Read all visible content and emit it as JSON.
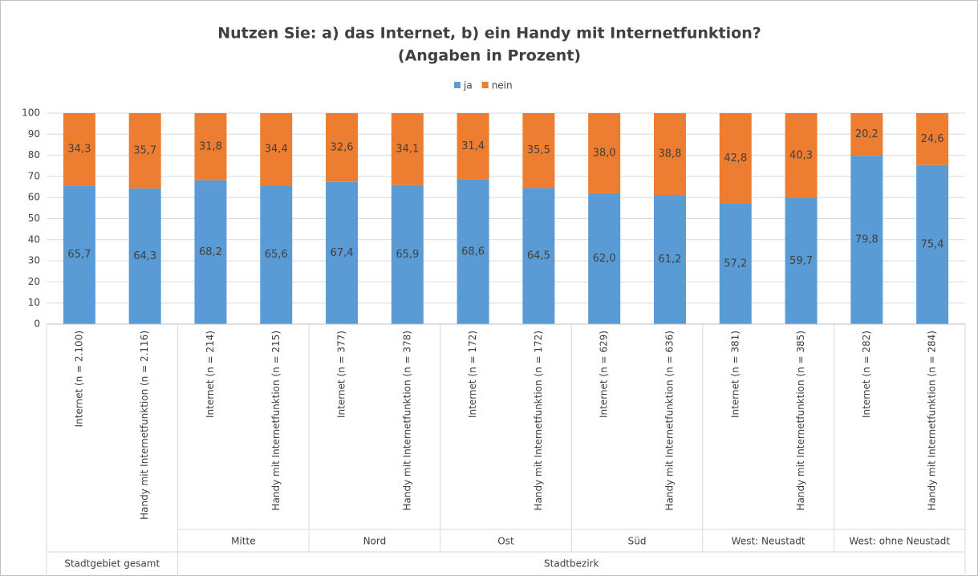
{
  "chart_data": {
    "type": "stacked_bar",
    "title": "Nutzen Sie: a) das Internet, b) ein Handy mit Internetfunktion?",
    "subtitle": "(Angaben in Prozent)",
    "groups": [
      {
        "name": "Stadtgebiet gesamt",
        "subgroups": [
          {
            "categories": [
              "Internet (n = 2.100)",
              "Handy mit Internetfunktion (n = 2.116)"
            ]
          }
        ]
      },
      {
        "name": "Stadtbezirk",
        "subgroups": [
          {
            "name": "Mitte",
            "categories": [
              "Internet (n = 214)",
              "Handy mit Internetfunktion (n = 215)"
            ]
          },
          {
            "name": "Nord",
            "categories": [
              "Internet (n = 377)",
              "Handy mit Internetfunktion (n = 378)"
            ]
          },
          {
            "name": "Ost",
            "categories": [
              "Internet (n = 172)",
              "Handy mit Internetfunktion (n = 172)"
            ]
          },
          {
            "name": "Süd",
            "categories": [
              "Internet (n = 629)",
              "Handy mit Internetfunktion (n = 636)"
            ]
          },
          {
            "name": "West: Neustadt",
            "categories": [
              "Internet (n = 381)",
              "Handy mit Internetfunktion (n = 385)"
            ]
          },
          {
            "name": "West: ohne Neustadt",
            "categories": [
              "Internet (n = 282)",
              "Handy mit Internetfunktion (n = 284)"
            ]
          }
        ]
      }
    ],
    "series": [
      {
        "name": "ja",
        "color": "#5b9bd5",
        "values": [
          65.7,
          64.3,
          68.2,
          65.6,
          67.4,
          65.9,
          68.6,
          64.5,
          62.0,
          61.2,
          57.2,
          59.7,
          79.8,
          75.4
        ],
        "value_labels": [
          "65,7",
          "64,3",
          "68,2",
          "65,6",
          "67,4",
          "65,9",
          "68,6",
          "64,5",
          "62,0",
          "61,2",
          "57,2",
          "59,7",
          "79,8",
          "75,4"
        ]
      },
      {
        "name": "nein",
        "color": "#ed7d31",
        "values": [
          34.3,
          35.7,
          31.8,
          34.4,
          32.6,
          34.1,
          31.4,
          35.5,
          38.0,
          38.8,
          42.8,
          40.3,
          20.2,
          24.6
        ],
        "value_labels": [
          "34,3",
          "35,7",
          "31,8",
          "34,4",
          "32,6",
          "34,1",
          "31,4",
          "35,5",
          "38,0",
          "38,8",
          "42,8",
          "40,3",
          "20,2",
          "24,6"
        ]
      }
    ],
    "ylim": [
      0,
      100
    ],
    "yticks": [
      0,
      10,
      20,
      30,
      40,
      50,
      60,
      70,
      80,
      90,
      100
    ],
    "grid": true,
    "legend": "top"
  }
}
